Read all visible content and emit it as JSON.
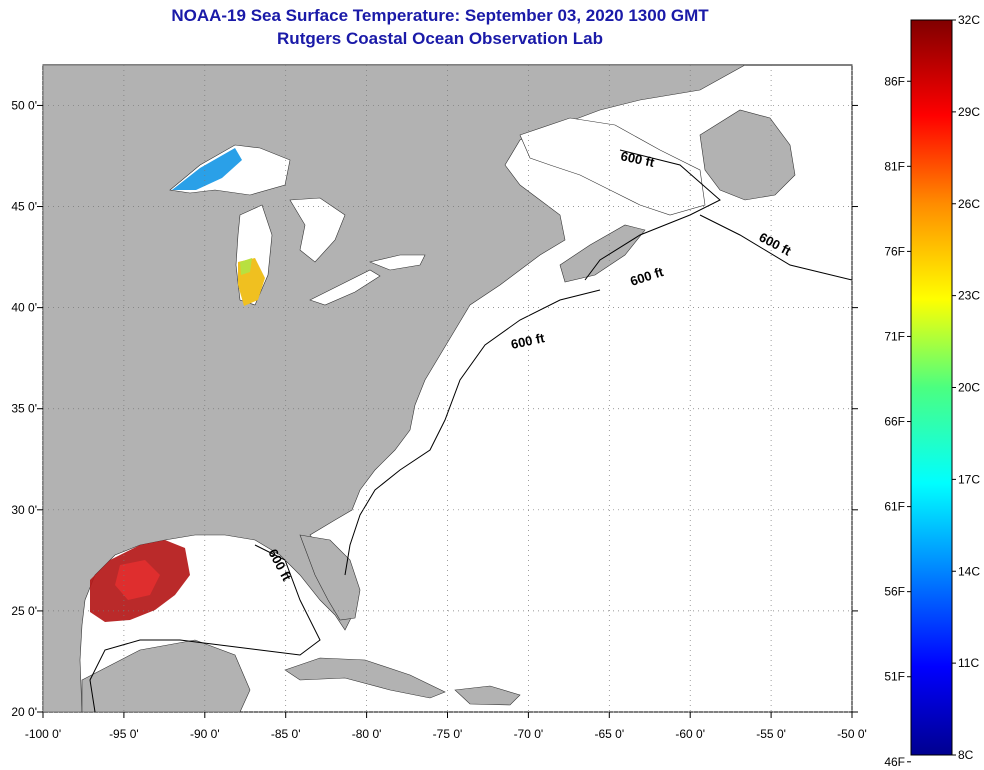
{
  "header": {
    "title": "NOAA-19 Sea Surface Temperature:  September 03, 2020 1300 GMT",
    "subtitle": "Rutgers Coastal Ocean Observation Lab"
  },
  "map": {
    "lon_range": [
      -100,
      -50
    ],
    "lat_range": [
      20,
      52
    ],
    "lon_ticks": [
      "-100 0'",
      "-95 0'",
      "-90 0'",
      "-85 0'",
      "-80 0'",
      "-75 0'",
      "-70 0'",
      "-65 0'",
      "-60 0'",
      "-55 0'",
      "-50 0'"
    ],
    "lat_ticks": [
      "20 0'",
      "25 0'",
      "30 0'",
      "35 0'",
      "40 0'",
      "45 0'",
      "50 0'"
    ],
    "contour_labels": [
      "600 ft",
      "600 ft",
      "600 ft",
      "600 ft",
      "600 ft"
    ],
    "colors": {
      "land": "#b2b2b2",
      "water": "#ffffff",
      "grid": "#777777"
    }
  },
  "colorbar": {
    "celsius_labels": [
      "32C",
      "29C",
      "26C",
      "23C",
      "20C",
      "17C",
      "14C",
      "11C",
      "8C"
    ],
    "fahrenheit_labels": [
      "86F",
      "81F",
      "76F",
      "71F",
      "66F",
      "61F",
      "56F",
      "51F",
      "46F"
    ],
    "min_c": 8,
    "max_c": 32
  }
}
